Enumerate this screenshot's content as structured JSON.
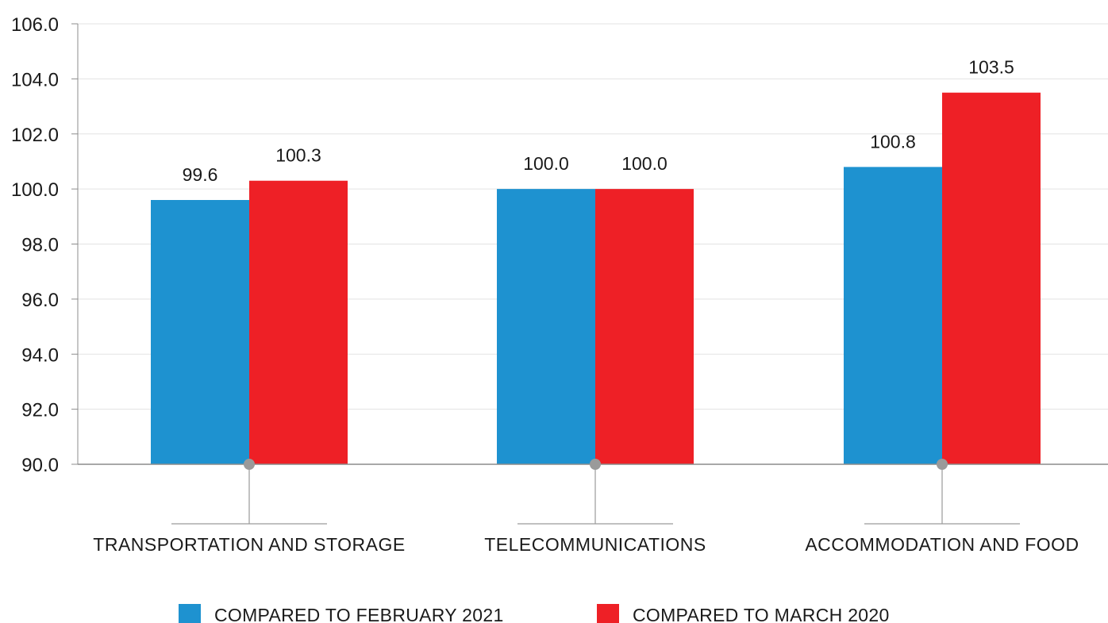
{
  "chart_data": {
    "type": "bar",
    "categories": [
      "TRANSPORTATION AND STORAGE",
      "TELECOMMUNICATIONS",
      "ACCOMMODATION AND FOOD"
    ],
    "series": [
      {
        "name": "COMPARED TO FEBRUARY 2021",
        "values": [
          99.6,
          100.0,
          100.8
        ],
        "labels": [
          "99.6",
          "100.0",
          "100.8"
        ],
        "color": "#1e92d0"
      },
      {
        "name": "COMPARED TO MARCH 2020",
        "values": [
          100.3,
          100.0,
          103.5
        ],
        "labels": [
          "100.3",
          "100.0",
          "103.5"
        ],
        "color": "#ee2026"
      }
    ],
    "ylim": [
      90,
      106
    ],
    "yticks": [
      "90.0",
      "92.0",
      "94.0",
      "96.0",
      "98.0",
      "100.0",
      "102.0",
      "104.0",
      "106.0"
    ],
    "grid": true,
    "legend_position": "bottom",
    "title": "",
    "xlabel": "",
    "ylabel": ""
  }
}
